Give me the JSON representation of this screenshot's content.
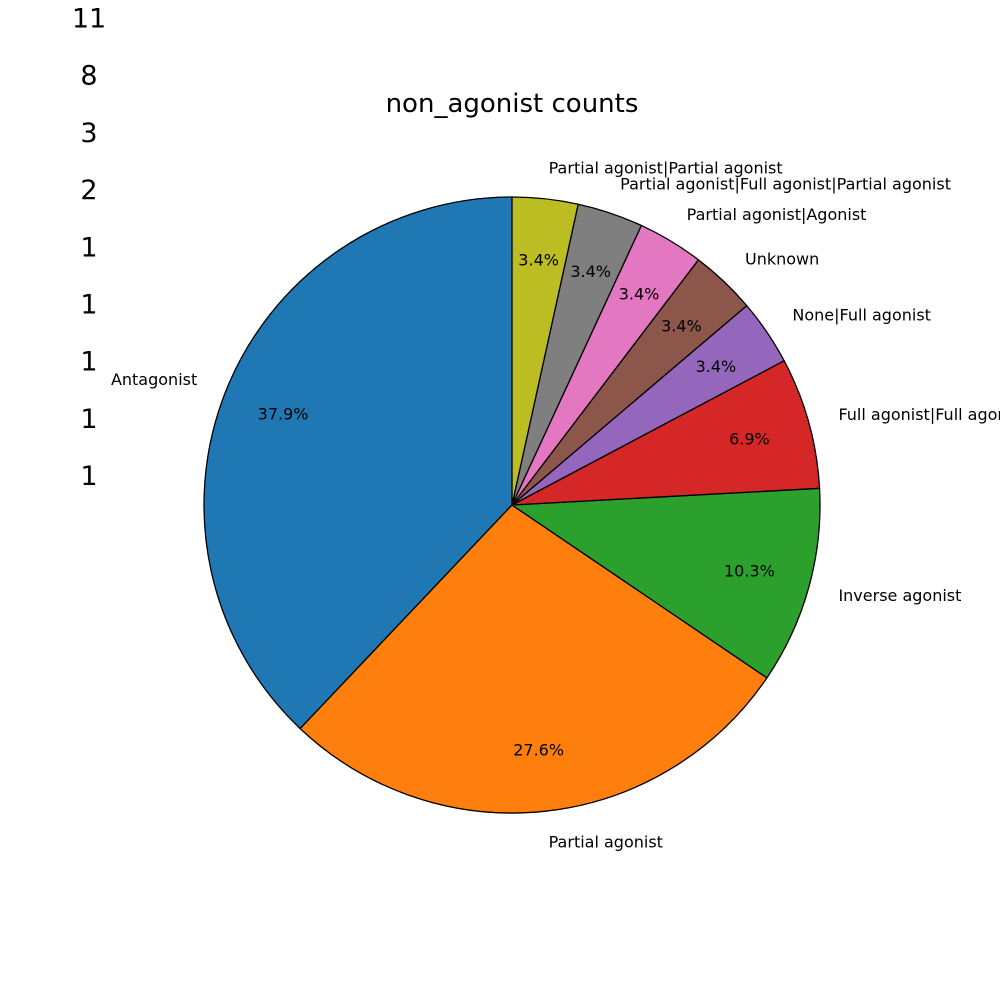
{
  "chart_data": {
    "type": "pie",
    "title": "non_agonist counts",
    "categories": [
      "Antagonist",
      "Partial agonist",
      "Inverse agonist",
      "Full agonist|Full agonist",
      "None|Full agonist",
      "Unknown",
      "Partial agonist|Agonist",
      "Partial agonist|Full agonist|Partial agonist",
      "Partial agonist|Partial agonist"
    ],
    "values": [
      11,
      8,
      3,
      2,
      1,
      1,
      1,
      1,
      1
    ],
    "percent_labels": [
      "37.9%",
      "27.6%",
      "10.3%",
      "6.9%",
      "3.4%",
      "3.4%",
      "3.4%",
      "3.4%",
      "3.4%"
    ],
    "count_list": [
      "11",
      "8",
      "3",
      "2",
      "1",
      "1",
      "1",
      "1",
      "1"
    ],
    "colors": [
      "#1f77b4",
      "#ff7f0e",
      "#2ca02c",
      "#d62728",
      "#9467bd",
      "#8c564b",
      "#e377c2",
      "#7f7f7f",
      "#bcbd22"
    ],
    "edge_color": "#000000",
    "start_angle_deg": 90,
    "direction": "counterclockwise"
  }
}
